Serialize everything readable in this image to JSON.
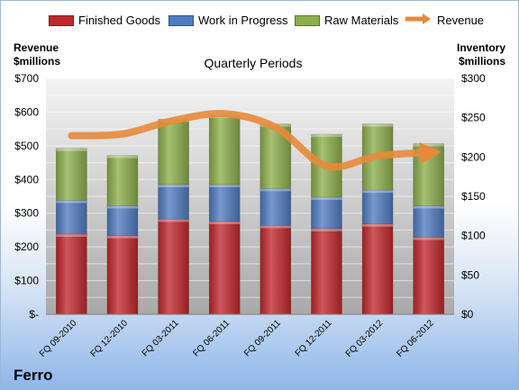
{
  "chart_data": {
    "type": "bar",
    "stacked": true,
    "categories": [
      "FQ 09-2010",
      "FQ 12-2010",
      "FQ 03-2011",
      "FQ 06-2011",
      "FQ 09-2011",
      "FQ 12-2011",
      "FQ 03-2012",
      "FQ 06-2012"
    ],
    "series": [
      {
        "name": "Finished Goods",
        "axis": "right",
        "color": "#c0282d",
        "values": [
          102,
          100,
          121,
          118,
          113,
          109,
          115,
          98
        ]
      },
      {
        "name": "Work in Progress",
        "axis": "right",
        "color": "#4f7cc0",
        "values": [
          43,
          38,
          44,
          47,
          47,
          40,
          43,
          40
        ]
      },
      {
        "name": "Raw Materials",
        "axis": "right",
        "color": "#8dae4c",
        "values": [
          66,
          64,
          83,
          88,
          82,
          80,
          84,
          79
        ]
      },
      {
        "name": "Revenue",
        "type": "line",
        "axis": "left",
        "color": "#e8893a",
        "values": [
          530,
          535,
          575,
          595,
          555,
          440,
          470,
          480
        ]
      }
    ],
    "title": "Quarterly Periods",
    "ylabel_left": "Revenue\n$millions",
    "ylabel_right": "Inventory\n$millions",
    "ylim_left": [
      0,
      700
    ],
    "ylim_right": [
      0,
      300
    ],
    "left_ticks": [
      "$-",
      "$100",
      "$200",
      "$300",
      "$400",
      "$500",
      "$600",
      "$700"
    ],
    "right_ticks": [
      "$0",
      "$50",
      "$100",
      "$150",
      "$200",
      "$250",
      "$300"
    ],
    "grid": true,
    "legend_position": "top"
  },
  "company": "Ferro"
}
